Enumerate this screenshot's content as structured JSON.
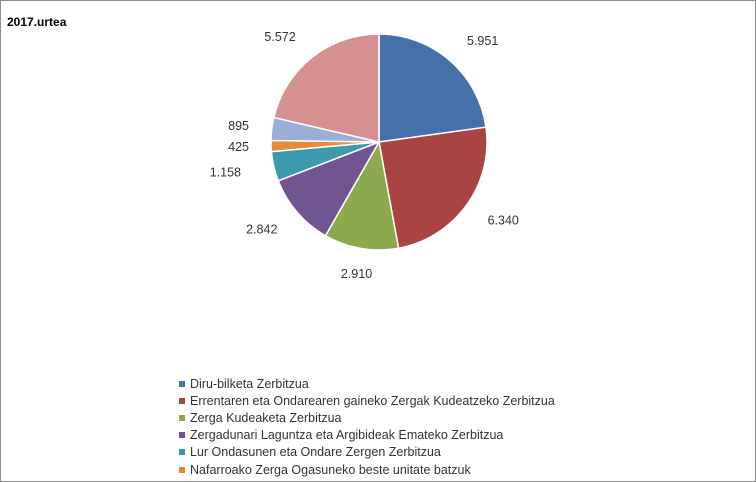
{
  "chart_data": {
    "type": "pie",
    "title": "2017.urtea",
    "slices": [
      {
        "label": "Diru-bilketa Zerbitzua",
        "value": 5951,
        "display": "5.951",
        "color": "#4472a8",
        "in_legend": true
      },
      {
        "label": "Errentaren eta Ondarearen gaineko Zergak Kudeatzeko Zerbitzua",
        "value": 6340,
        "display": "6.340",
        "color": "#a94442",
        "in_legend": true
      },
      {
        "label": "Zerga Kudeaketa Zerbitzua",
        "value": 2910,
        "display": "2.910",
        "color": "#8caa4d",
        "in_legend": true
      },
      {
        "label": "Zergadunari Laguntza eta Argibideak Emateko Zerbitzua",
        "value": 2842,
        "display": "2.842",
        "color": "#715592",
        "in_legend": true
      },
      {
        "label": "Lur Ondasunen eta Ondare Zergen Zerbitzua",
        "value": 1158,
        "display": "1.158",
        "color": "#3d9aae",
        "in_legend": true
      },
      {
        "label": "Nafarroako Zerga Ogasuneko beste unitate batzuk",
        "value": 425,
        "display": "425",
        "color": "#e68a3c",
        "in_legend": true
      },
      {
        "label": "",
        "value": 895,
        "display": "895",
        "color": "#9caed6",
        "in_legend": false
      },
      {
        "label": "",
        "value": 5572,
        "display": "5.572",
        "color": "#d4918f",
        "in_legend": false
      }
    ]
  }
}
